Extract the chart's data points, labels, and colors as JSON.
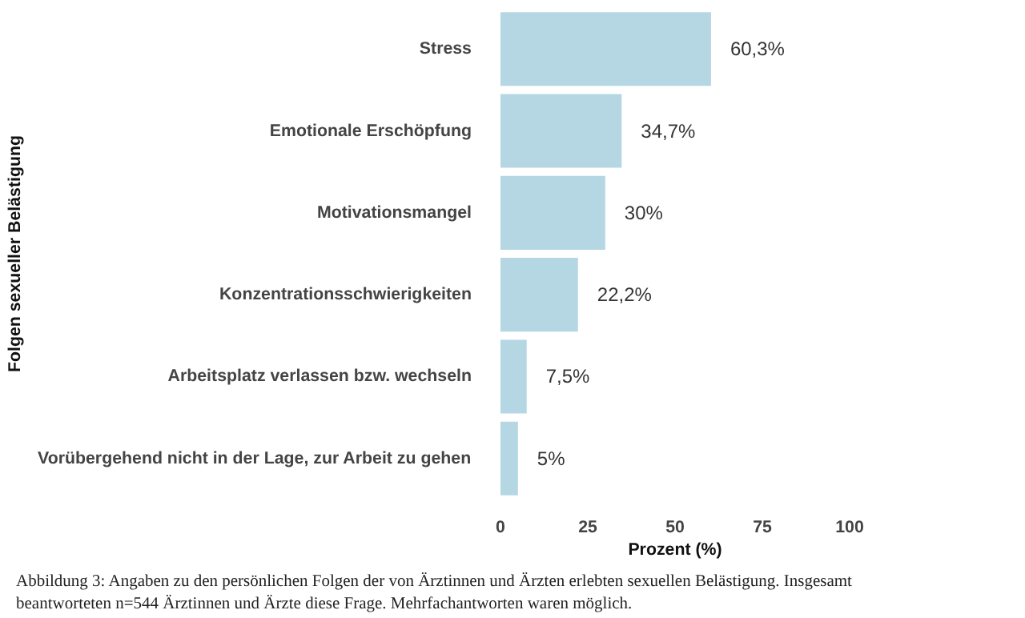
{
  "chart_data": {
    "type": "bar",
    "orientation": "horizontal",
    "xlabel": "Prozent (%)",
    "ylabel": "Folgen sexueller Belästigung",
    "categories": [
      "Stress",
      "Emotionale Erschöpfung",
      "Motivationsmangel",
      "Konzentrationsschwierigkeiten",
      "Arbeitsplatz verlassen bzw. wechseln",
      "Vorübergehend nicht in der Lage, zur Arbeit zu gehen"
    ],
    "values": [
      60.3,
      34.7,
      30,
      22.2,
      7.5,
      5
    ],
    "value_labels": [
      "60,3%",
      "34,7%",
      "30%",
      "22,2%",
      "7,5%",
      "5%"
    ],
    "color": "#b4d7e3",
    "xlim": [
      0,
      100
    ],
    "xticks": [
      0,
      25,
      50,
      75,
      100
    ],
    "grid": false,
    "annotations": [
      "Abbildung 3: Angaben zu den persönlichen Folgen der von Ärztinnen und Ärzten erlebten sexuellen Belästigung. Insgesamt beantworteten n=544 Ärztinnen und Ärzte diese Frage. Mehrfachantworten waren möglich."
    ]
  }
}
